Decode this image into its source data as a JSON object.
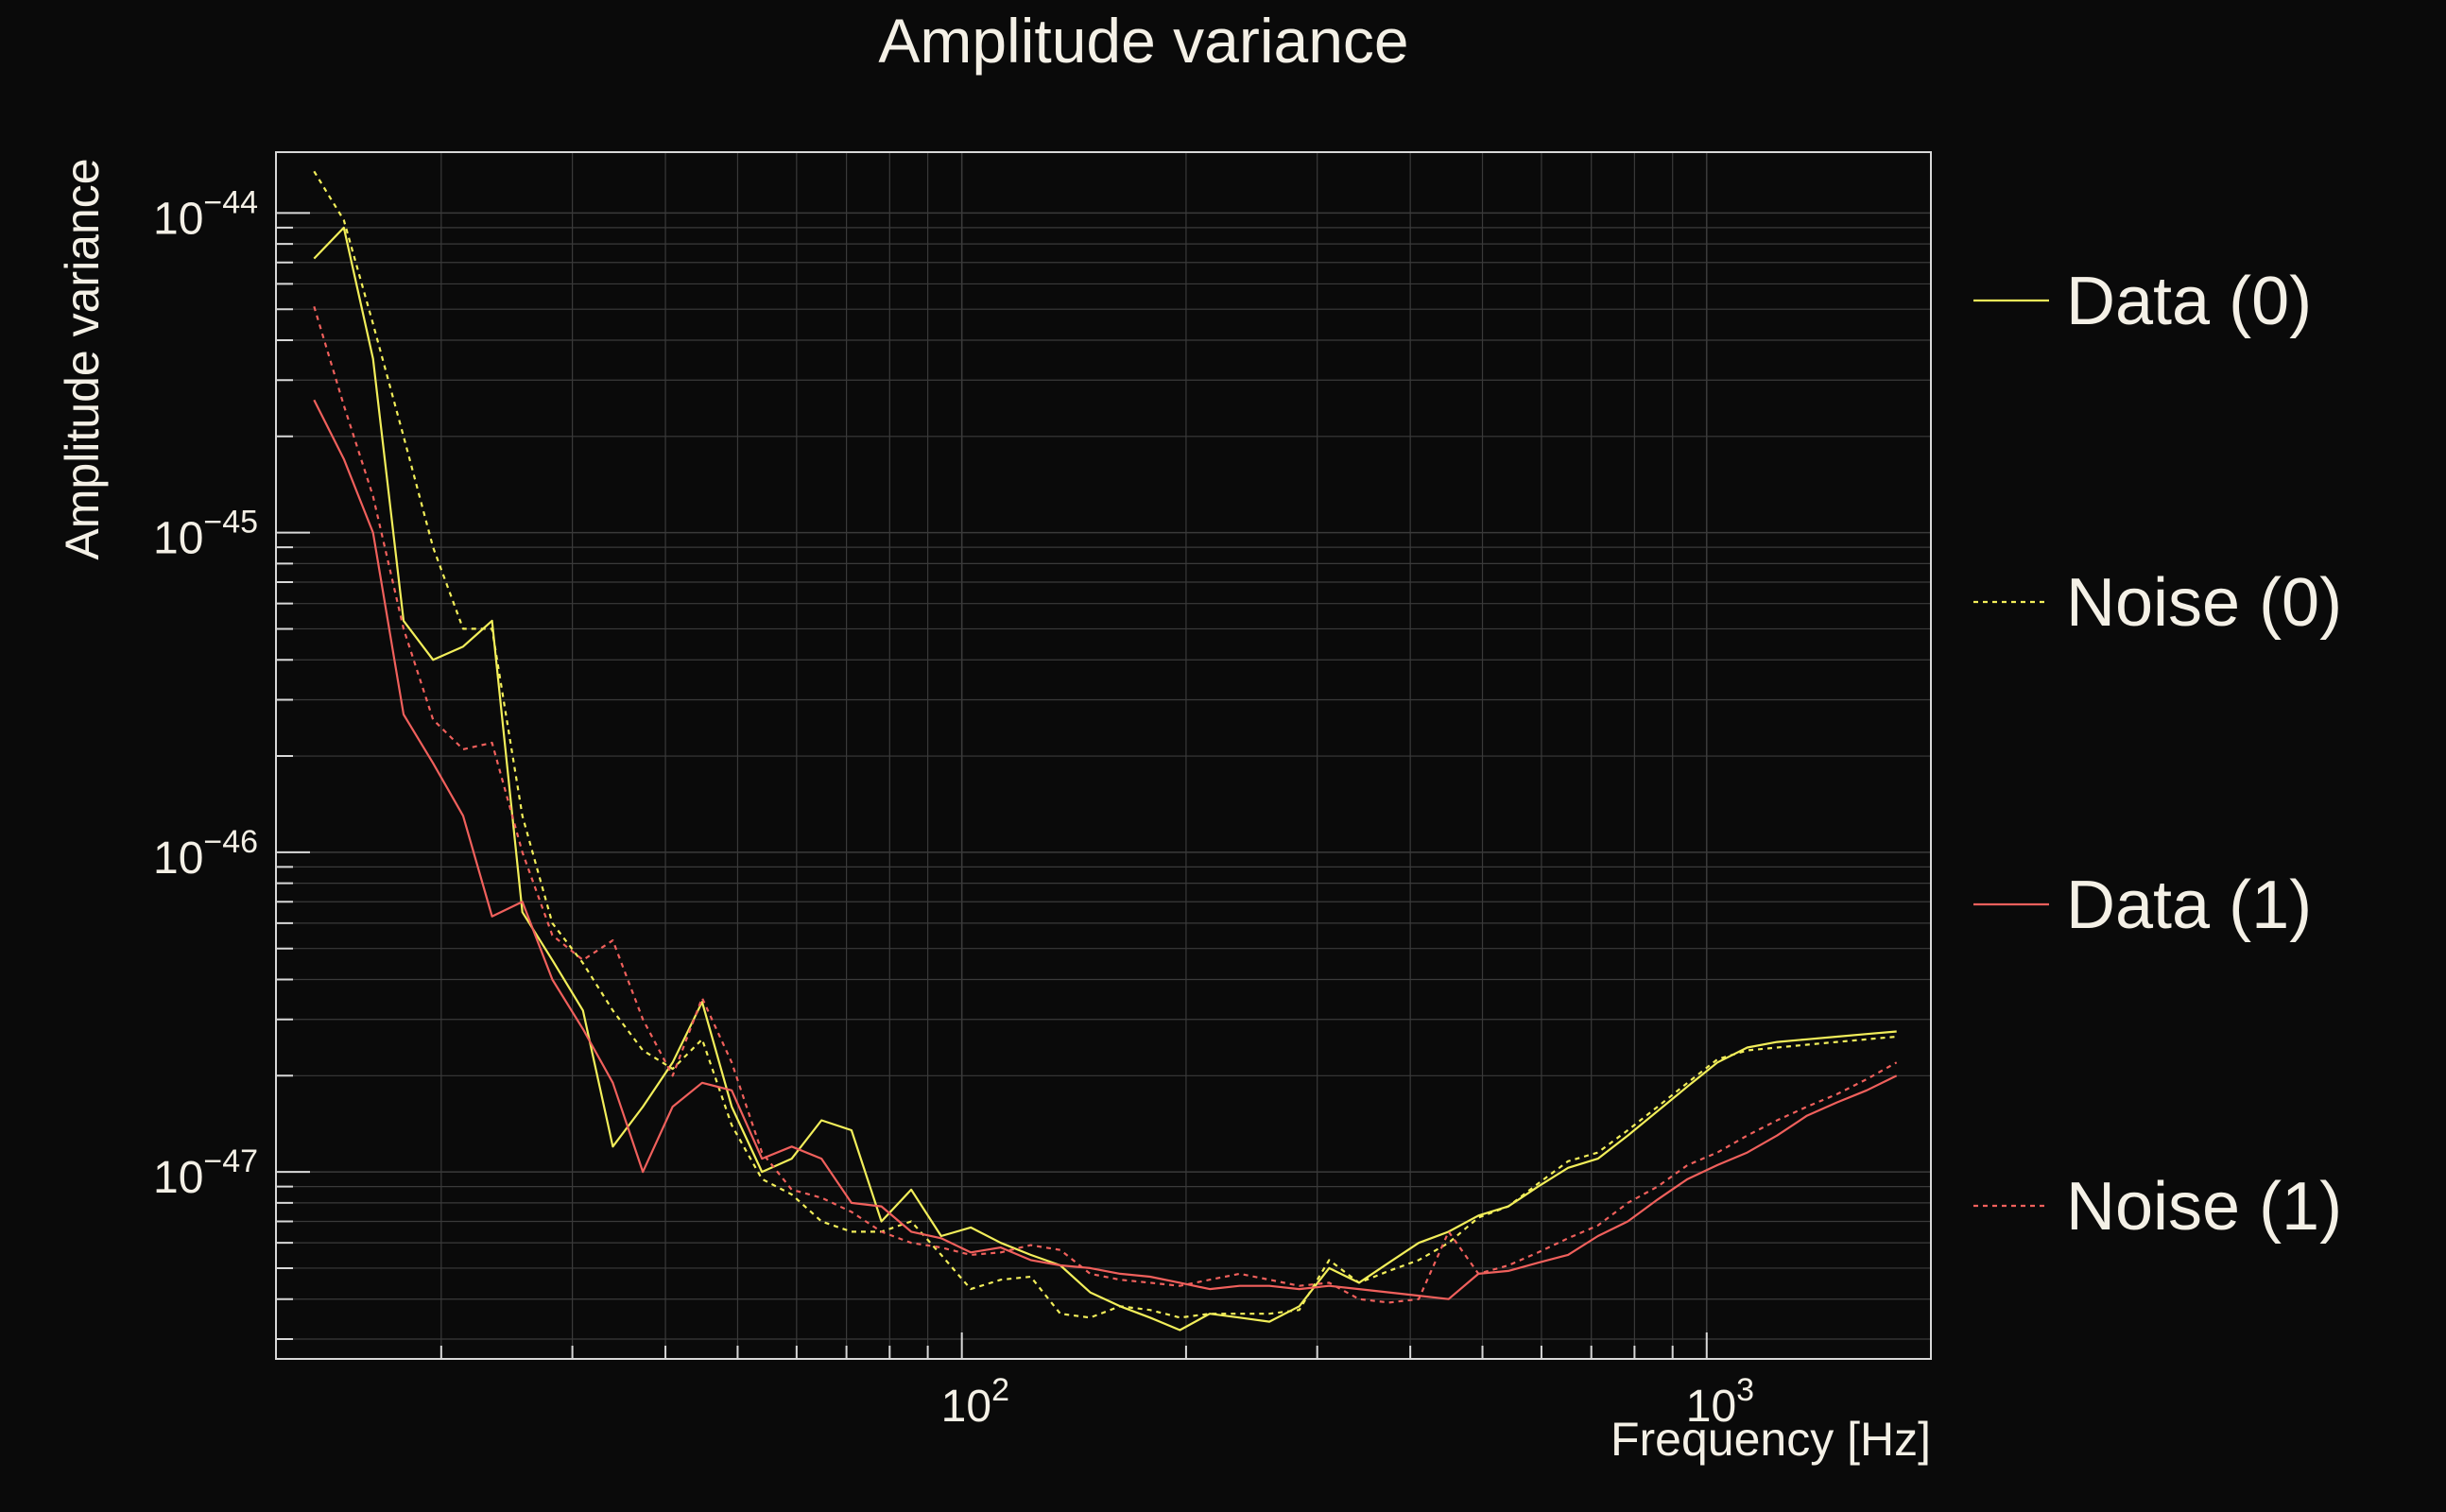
{
  "colors": {
    "background": "#0a0a0a",
    "text": "#f4f0e6",
    "axis": "#d8d8d8",
    "grid": "#3a3a3a",
    "yellow": "#f2ee5a",
    "red": "#f0605c"
  },
  "chart_data": {
    "type": "line",
    "title": "Amplitude variance",
    "xlabel": "Frequency [Hz]",
    "ylabel": "Amplitude variance",
    "x_scale": "log",
    "y_scale": "log",
    "xlim": [
      12,
      2000
    ],
    "ylim": [
      2.6e-48,
      1.55e-44
    ],
    "grid": true,
    "legend_position": "right",
    "x_ticks": [
      {
        "value": 100,
        "base": "10",
        "exp": "2"
      },
      {
        "value": 1000,
        "base": "10",
        "exp": "3"
      }
    ],
    "y_ticks": [
      {
        "value": 1e-44,
        "base": "10",
        "exp": "−44"
      },
      {
        "value": 1e-45,
        "base": "10",
        "exp": "−45"
      },
      {
        "value": 1e-46,
        "base": "10",
        "exp": "−46"
      },
      {
        "value": 1e-47,
        "base": "10",
        "exp": "−47"
      }
    ],
    "x": [
      13.5,
      14.8,
      16.2,
      17.8,
      19.5,
      21.4,
      23.4,
      25.7,
      28.2,
      31,
      34,
      37.3,
      40.9,
      44.8,
      49.1,
      53.9,
      59.1,
      64.8,
      71.1,
      78,
      85.5,
      93.8,
      102.8,
      112.8,
      123.7,
      135.6,
      148.7,
      163.1,
      178.9,
      196.2,
      215.2,
      236,
      258.8,
      283.8,
      311.3,
      341.4,
      374.4,
      410.6,
      450.3,
      493.9,
      541.6,
      594,
      651.5,
      714.5,
      783.6,
      859.4,
      942.5,
      1033.7,
      1133.7,
      1243.3,
      1363.5,
      1495.4,
      1640,
      1798.6
    ],
    "series": [
      {
        "name": "Data (0)",
        "color": "#f2ee5a",
        "dash": "solid",
        "values": [
          7.2e-45,
          9e-45,
          3.5e-45,
          5.3e-46,
          4e-46,
          4.4e-46,
          5.3e-46,
          6.5e-47,
          4.6e-47,
          3.2e-47,
          1.2e-47,
          1.6e-47,
          2.2e-47,
          3.4e-47,
          1.6e-47,
          1e-47,
          1.1e-47,
          1.45e-47,
          1.35e-47,
          7e-48,
          8.8e-48,
          6.3e-48,
          6.7e-48,
          6e-48,
          5.5e-48,
          5.1e-48,
          4.2e-48,
          3.8e-48,
          3.5e-48,
          3.2e-48,
          3.6e-48,
          3.5e-48,
          3.4e-48,
          3.8e-48,
          5e-48,
          4.5e-48,
          5.2e-48,
          6e-48,
          6.5e-48,
          7.3e-48,
          7.8e-48,
          9e-48,
          1.03e-47,
          1.1e-47,
          1.3e-47,
          1.55e-47,
          1.85e-47,
          2.2e-47,
          2.45e-47,
          2.55e-47,
          2.6e-47,
          2.65e-47,
          2.7e-47,
          2.75e-47
        ]
      },
      {
        "name": "Noise (0)",
        "color": "#f2ee5a",
        "dash": "dotted",
        "values": [
          1.35e-44,
          9.5e-45,
          4.5e-45,
          2e-45,
          9e-46,
          5e-46,
          5e-46,
          1.3e-46,
          6e-47,
          4.5e-47,
          3.2e-47,
          2.4e-47,
          2.1e-47,
          2.6e-47,
          1.4e-47,
          9.5e-48,
          8.5e-48,
          7e-48,
          6.5e-48,
          6.5e-48,
          7e-48,
          5.5e-48,
          4.3e-48,
          4.6e-48,
          4.7e-48,
          3.6e-48,
          3.5e-48,
          3.8e-48,
          3.7e-48,
          3.5e-48,
          3.6e-48,
          3.6e-48,
          3.6e-48,
          3.7e-48,
          5.3e-48,
          4.5e-48,
          4.9e-48,
          5.3e-48,
          6e-48,
          7.2e-48,
          7.8e-48,
          9.2e-48,
          1.08e-47,
          1.15e-47,
          1.35e-47,
          1.6e-47,
          1.9e-47,
          2.25e-47,
          2.4e-47,
          2.45e-47,
          2.5e-47,
          2.55e-47,
          2.6e-47,
          2.65e-47
        ]
      },
      {
        "name": "Data (1)",
        "color": "#f0605c",
        "dash": "solid",
        "values": [
          2.6e-45,
          1.7e-45,
          1e-45,
          2.7e-46,
          1.9e-46,
          1.3e-46,
          6.3e-47,
          7e-47,
          4e-47,
          2.8e-47,
          1.9e-47,
          1e-47,
          1.6e-47,
          1.9e-47,
          1.8e-47,
          1.1e-47,
          1.2e-47,
          1.1e-47,
          8e-48,
          7.8e-48,
          6.5e-48,
          6.2e-48,
          5.6e-48,
          5.8e-48,
          5.3e-48,
          5.1e-48,
          5e-48,
          4.8e-48,
          4.7e-48,
          4.5e-48,
          4.3e-48,
          4.4e-48,
          4.4e-48,
          4.3e-48,
          4.4e-48,
          4.3e-48,
          4.2e-48,
          4.1e-48,
          4e-48,
          4.8e-48,
          4.9e-48,
          5.2e-48,
          5.5e-48,
          6.3e-48,
          7e-48,
          8.2e-48,
          9.5e-48,
          1.05e-47,
          1.15e-47,
          1.3e-47,
          1.5e-47,
          1.65e-47,
          1.8e-47,
          2e-47
        ]
      },
      {
        "name": "Noise (1)",
        "color": "#f0605c",
        "dash": "dotted",
        "values": [
          5.1e-45,
          2.5e-45,
          1.3e-45,
          5e-46,
          2.6e-46,
          2.1e-46,
          2.2e-46,
          1e-46,
          5.5e-47,
          4.6e-47,
          5.3e-47,
          3e-47,
          2e-47,
          3.5e-47,
          2.2e-47,
          1.15e-47,
          8.8e-48,
          8.3e-48,
          7.5e-48,
          6.5e-48,
          6e-48,
          5.8e-48,
          5.5e-48,
          5.6e-48,
          5.9e-48,
          5.7e-48,
          4.8e-48,
          4.6e-48,
          4.5e-48,
          4.4e-48,
          4.6e-48,
          4.8e-48,
          4.6e-48,
          4.4e-48,
          4.5e-48,
          4e-48,
          3.9e-48,
          4e-48,
          6.5e-48,
          4.8e-48,
          5.1e-48,
          5.6e-48,
          6.2e-48,
          6.8e-48,
          8e-48,
          9e-48,
          1.05e-47,
          1.15e-47,
          1.3e-47,
          1.45e-47,
          1.6e-47,
          1.75e-47,
          1.95e-47,
          2.2e-47
        ]
      }
    ]
  }
}
